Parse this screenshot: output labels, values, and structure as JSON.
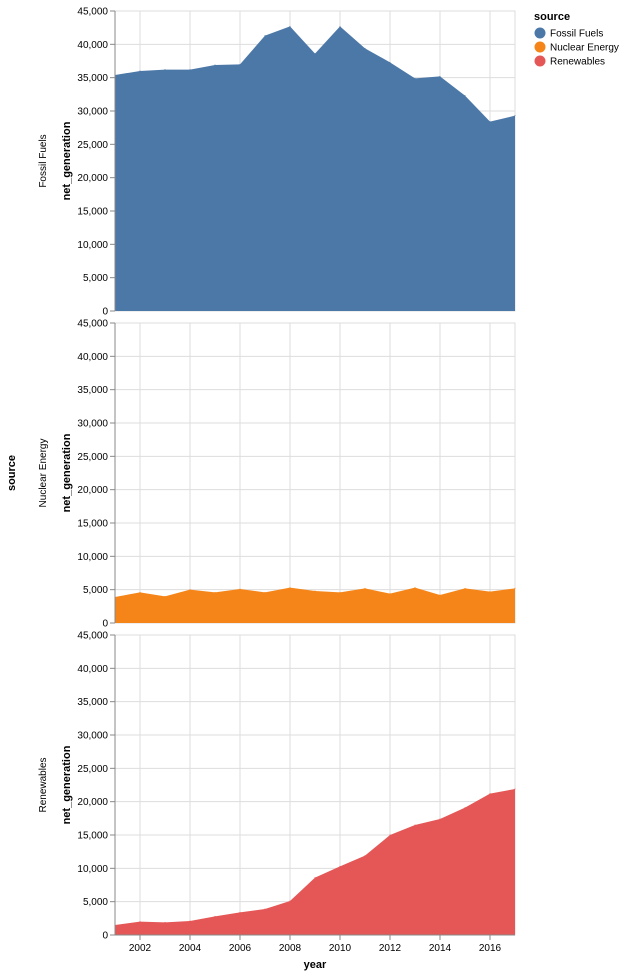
{
  "chart_data": {
    "type": "area",
    "facet_title": "source",
    "xlabel": "year",
    "ylabel": "net_generation",
    "xlim": [
      2001,
      2017
    ],
    "ylim": [
      0,
      45000
    ],
    "x_ticks": [
      2002,
      2004,
      2006,
      2008,
      2010,
      2012,
      2014,
      2016
    ],
    "y_ticks": [
      0,
      5000,
      10000,
      15000,
      20000,
      25000,
      30000,
      35000,
      40000,
      45000
    ],
    "grid": true,
    "legend": {
      "title": "source",
      "position": "top-right"
    },
    "x": [
      2001,
      2002,
      2003,
      2004,
      2005,
      2006,
      2007,
      2008,
      2009,
      2010,
      2011,
      2012,
      2013,
      2014,
      2015,
      2016,
      2017
    ],
    "series": [
      {
        "name": "Fossil Fuels",
        "color": "#4c78a8",
        "values": [
          35400,
          36000,
          36200,
          36200,
          36900,
          37000,
          41300,
          42700,
          38600,
          42700,
          39400,
          37300,
          34900,
          35200,
          32300,
          28400,
          29300
        ]
      },
      {
        "name": "Nuclear Energy",
        "color": "#f58518",
        "values": [
          3900,
          4600,
          4000,
          5000,
          4600,
          5100,
          4600,
          5300,
          4800,
          4600,
          5200,
          4400,
          5300,
          4200,
          5200,
          4700,
          5200
        ]
      },
      {
        "name": "Renewables",
        "color": "#e45756",
        "values": [
          1500,
          2000,
          1900,
          2100,
          2800,
          3400,
          3900,
          5100,
          8600,
          10300,
          11900,
          15000,
          16500,
          17400,
          19100,
          21200,
          21900
        ]
      }
    ]
  }
}
